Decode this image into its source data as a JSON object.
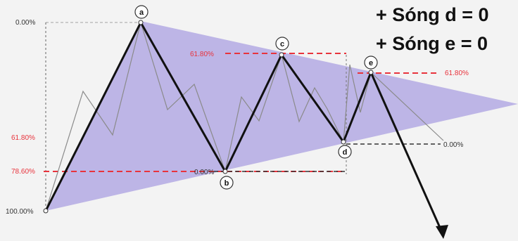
{
  "header": {
    "line1": "+ Sóng d = 0",
    "line2": "+ Sóng e = 0"
  },
  "levels": {
    "origin_0": "0.00%",
    "origin_100": "100.00%",
    "left_618": "61.80%",
    "left_786": "78.60%",
    "c_618": "61.80%",
    "b_0": "0.00%",
    "e_618": "61.80%",
    "d_0": "0.00%"
  },
  "waves": {
    "a": "a",
    "b": "b",
    "c": "c",
    "d": "d",
    "e": "e"
  },
  "colors": {
    "triangle_fill": "#b3a9e3",
    "retrace_red": "#e8333c",
    "guide_dark": "#333333",
    "main_wave": "#111111",
    "sub_wave": "#8a8a8a"
  }
}
